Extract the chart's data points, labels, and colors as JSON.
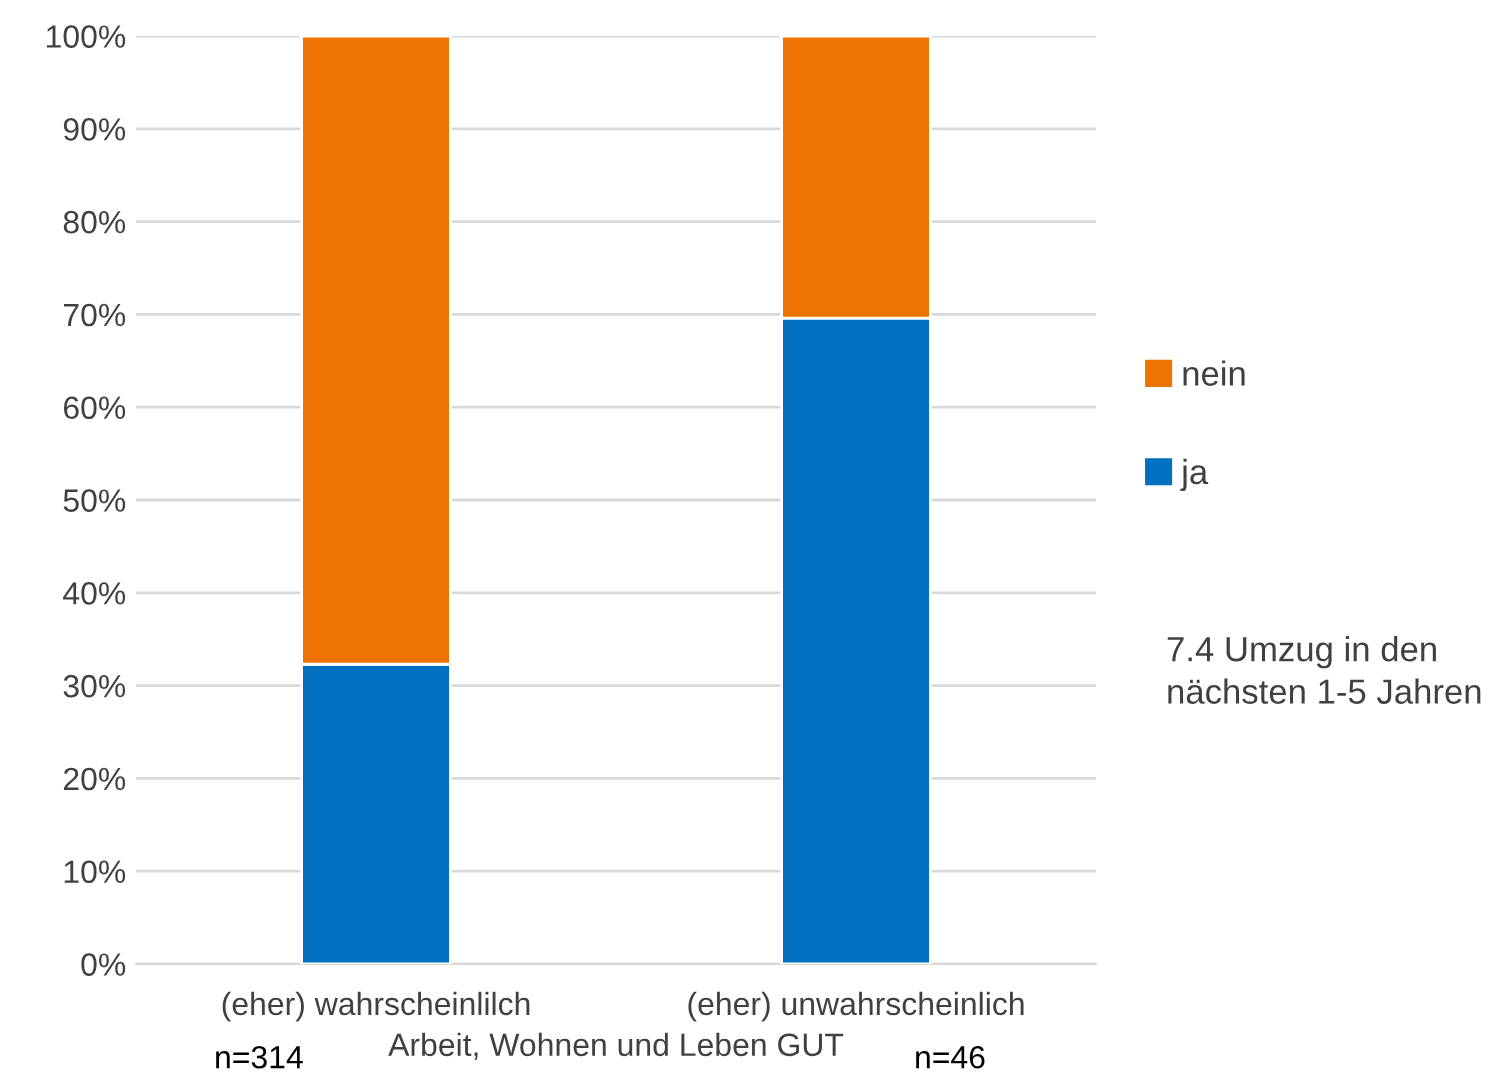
{
  "chart_data": {
    "type": "bar",
    "stacked": true,
    "categories": [
      "(eher) wahrscheinlilch",
      "(eher) unwahrscheinlich"
    ],
    "series": [
      {
        "name": "ja",
        "color": "#0070c0",
        "values": [
          32.3,
          69.6
        ]
      },
      {
        "name": "nein",
        "color": "#ef7300",
        "values": [
          67.7,
          30.4
        ]
      }
    ],
    "xlabel": "Arbeit, Wohnen und Leben GUT",
    "ylim": [
      0,
      100
    ],
    "yticks": [
      {
        "value": 0,
        "label": "0%"
      },
      {
        "value": 10,
        "label": "10%"
      },
      {
        "value": 20,
        "label": "20%"
      },
      {
        "value": 30,
        "label": "30%"
      },
      {
        "value": 40,
        "label": "40%"
      },
      {
        "value": 50,
        "label": "50%"
      },
      {
        "value": 60,
        "label": "60%"
      },
      {
        "value": 70,
        "label": "70%"
      },
      {
        "value": 80,
        "label": "80%"
      },
      {
        "value": 90,
        "label": "90%"
      },
      {
        "value": 100,
        "label": "100%"
      }
    ],
    "grid": "y",
    "legend": "right",
    "annotations": [
      "7.4 Umzug in den nächsten 1-5 Jahren",
      "n=314",
      "n=46"
    ]
  }
}
